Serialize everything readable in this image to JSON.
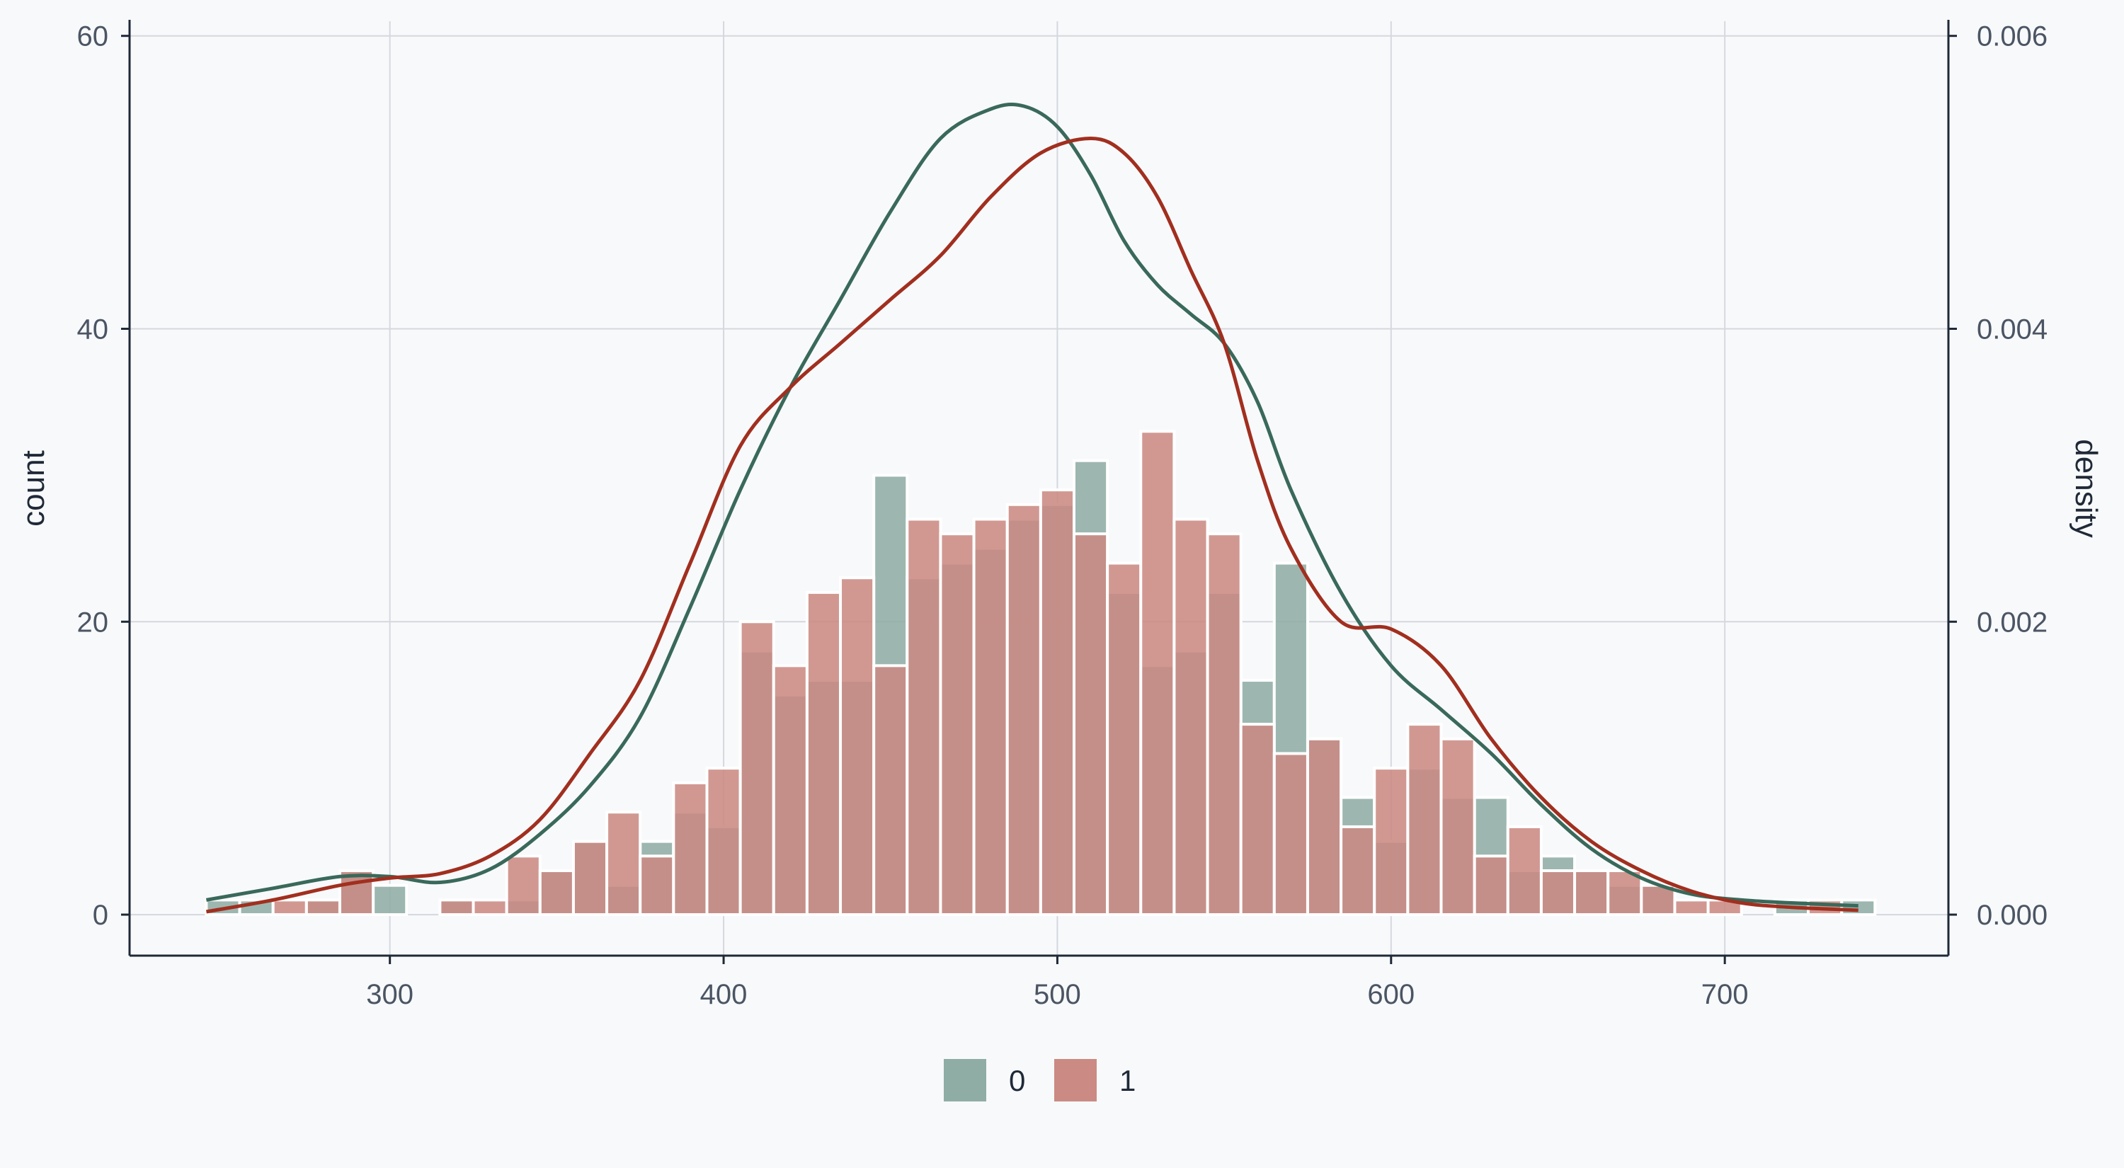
{
  "chart_data": {
    "type": "bar",
    "xlabel": "",
    "ylabel": "count",
    "y2label": "density",
    "xlim": [
      222,
      767
    ],
    "ylim": [
      -2.8,
      61
    ],
    "y2lim": [
      -0.00028,
      0.0061
    ],
    "xticks": [
      "300",
      "400",
      "500",
      "600",
      "700"
    ],
    "yticks": [
      "0",
      "20",
      "40",
      "60"
    ],
    "y2ticks": [
      "0.000",
      "0.002",
      "0.004",
      "0.006"
    ],
    "grid": true,
    "legend_position": "bottom",
    "bin_edges": [
      245,
      255,
      265,
      275,
      285,
      295,
      305,
      315,
      325,
      335,
      345,
      355,
      365,
      375,
      385,
      395,
      405,
      415,
      425,
      435,
      445,
      455,
      465,
      475,
      485,
      495,
      505,
      515,
      525,
      535,
      545,
      555,
      565,
      575,
      585,
      595,
      605,
      615,
      625,
      635,
      645,
      655,
      665,
      675,
      685,
      695,
      705,
      715,
      725,
      735,
      745
    ],
    "series": [
      {
        "name": "0",
        "color": "#39695a",
        "counts": [
          1,
          1,
          0,
          1,
          3,
          2,
          0,
          1,
          0,
          1,
          3,
          5,
          2,
          5,
          7,
          6,
          18,
          15,
          16,
          16,
          30,
          23,
          24,
          25,
          27,
          28,
          31,
          22,
          17,
          18,
          22,
          16,
          24,
          12,
          8,
          5,
          10,
          8,
          8,
          3,
          4,
          3,
          2,
          2,
          0,
          0,
          0,
          1,
          0,
          1
        ],
        "density": {
          "x": [
            245,
            265,
            285,
            300,
            315,
            330,
            345,
            360,
            375,
            390,
            405,
            420,
            435,
            450,
            465,
            480,
            490,
            500,
            510,
            520,
            530,
            540,
            550,
            560,
            570,
            585,
            600,
            615,
            630,
            645,
            660,
            675,
            690,
            705,
            720,
            740
          ],
          "y": [
            0.0001,
            0.00018,
            0.00026,
            0.00026,
            0.00022,
            0.00031,
            0.00055,
            0.00088,
            0.00135,
            0.0021,
            0.0029,
            0.0036,
            0.0042,
            0.0048,
            0.0053,
            0.0055,
            0.00552,
            0.00538,
            0.00505,
            0.0046,
            0.0043,
            0.0041,
            0.0039,
            0.0035,
            0.0029,
            0.0022,
            0.0017,
            0.0014,
            0.0011,
            0.00075,
            0.00045,
            0.00025,
            0.00014,
            0.0001,
            8e-05,
            6e-05
          ]
        }
      },
      {
        "name": "1",
        "color": "#a12f1f",
        "counts": [
          0,
          0,
          1,
          1,
          3,
          0,
          0,
          1,
          1,
          4,
          3,
          5,
          7,
          4,
          9,
          10,
          20,
          17,
          22,
          23,
          17,
          27,
          26,
          27,
          28,
          29,
          26,
          24,
          33,
          27,
          26,
          13,
          11,
          12,
          6,
          10,
          13,
          12,
          4,
          6,
          3,
          3,
          3,
          2,
          1,
          1,
          0,
          0,
          1,
          0
        ],
        "density": {
          "x": [
            245,
            265,
            285,
            300,
            315,
            330,
            345,
            360,
            375,
            390,
            405,
            420,
            435,
            450,
            465,
            480,
            495,
            510,
            520,
            530,
            540,
            550,
            560,
            570,
            585,
            600,
            615,
            630,
            645,
            660,
            675,
            690,
            705,
            720,
            740
          ],
          "y": [
            2e-05,
            0.0001,
            0.0002,
            0.00025,
            0.00028,
            0.0004,
            0.00065,
            0.0011,
            0.0016,
            0.0024,
            0.0032,
            0.0036,
            0.0039,
            0.0042,
            0.0045,
            0.0049,
            0.0052,
            0.0053,
            0.0052,
            0.0049,
            0.0044,
            0.0039,
            0.0031,
            0.0025,
            0.002,
            0.00195,
            0.0017,
            0.0012,
            0.0008,
            0.0005,
            0.0003,
            0.00016,
            8e-05,
            5e-05,
            3e-05
          ]
        }
      }
    ]
  }
}
